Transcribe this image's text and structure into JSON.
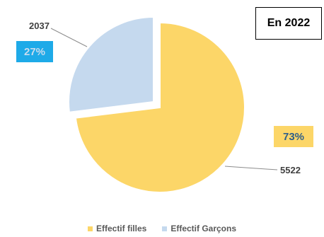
{
  "annotation": {
    "year_label": "En 2022"
  },
  "colors": {
    "filles": "#fcd668",
    "garcons": "#c5d9ee",
    "garcons_badge": "#1eaae8"
  },
  "chart_data": {
    "type": "pie",
    "title": "",
    "slices": [
      {
        "label": "Effectif filles",
        "value": 5522,
        "percent_label": "73%",
        "value_label": "5522",
        "color": "#fcd668"
      },
      {
        "label": "Effectif Garçons",
        "value": 2037,
        "percent_label": "27%",
        "value_label": "2037",
        "color": "#c5d9ee",
        "exploded": true
      }
    ],
    "legend": {
      "position": "bottom",
      "entries": [
        "Effectif filles",
        "Effectif Garçons"
      ]
    }
  }
}
